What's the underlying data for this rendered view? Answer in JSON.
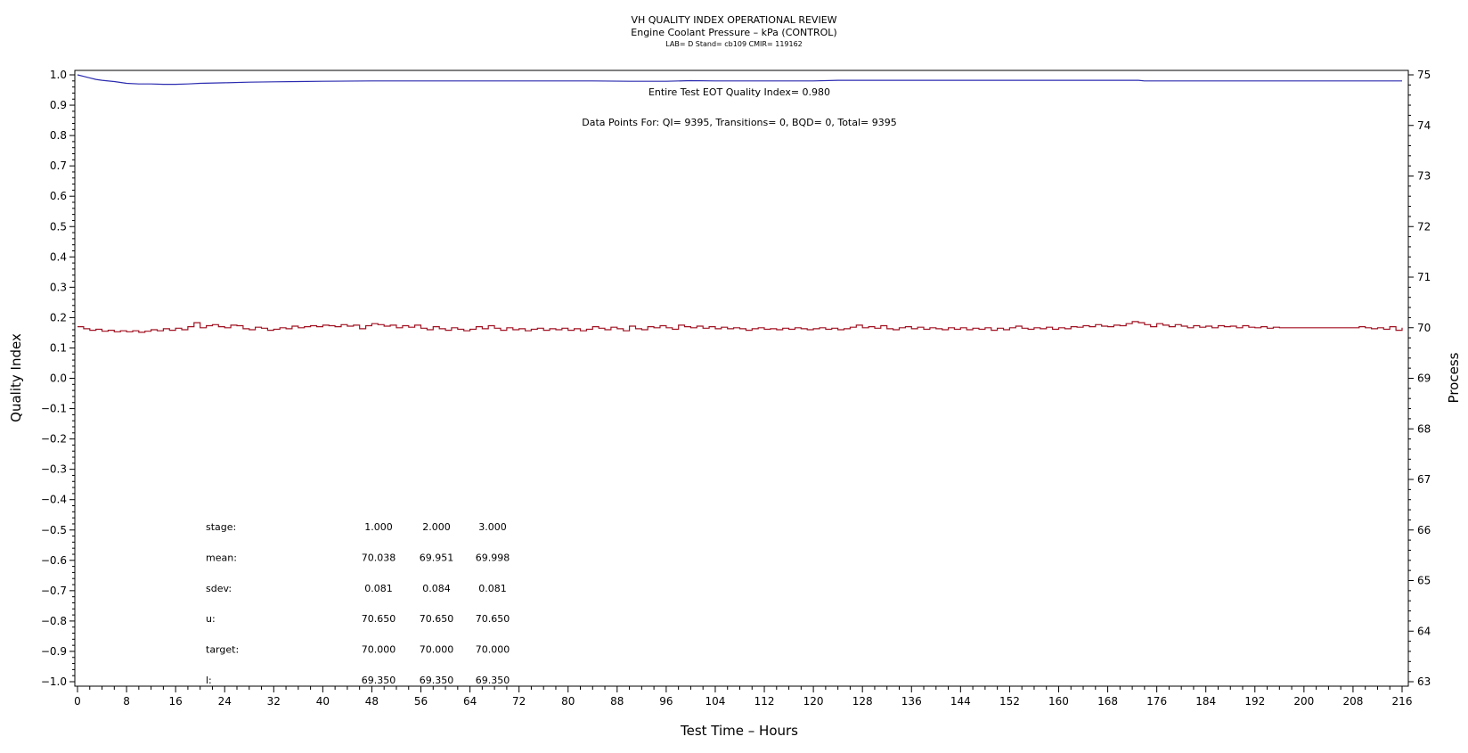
{
  "chart_data": {
    "type": "line",
    "title": "VH QUALITY INDEX OPERATIONAL REVIEW",
    "subtitle": "Engine Coolant Pressure – kPa (CONTROL)",
    "subtitle2": "LAB= D Stand= cb109 CMIR= 119162",
    "xlabel": "Test Time – Hours",
    "ylabel": "Quality Index",
    "y2label": "Process",
    "xlim": [
      0,
      216
    ],
    "ylim": [
      -1.0,
      1.0
    ],
    "y2lim": [
      63,
      75
    ],
    "x_ticks": [
      0,
      8,
      16,
      24,
      32,
      40,
      48,
      56,
      64,
      72,
      80,
      88,
      96,
      104,
      112,
      120,
      128,
      136,
      144,
      152,
      160,
      168,
      176,
      184,
      192,
      200,
      208,
      216
    ],
    "x_tick_labels": [
      "0",
      "8",
      "16",
      "24",
      "32",
      "40",
      "48",
      "56",
      "64",
      "72",
      "80",
      "88",
      "96",
      "104",
      "112",
      "120",
      "128",
      "136",
      "144",
      "152",
      "160",
      "168",
      "176",
      "184",
      "192",
      "200",
      "208",
      "216"
    ],
    "y_ticks": [
      1.0,
      0.9,
      0.8,
      0.7,
      0.6,
      0.5,
      0.4,
      0.3,
      0.2,
      0.1,
      0.0,
      -0.1,
      -0.2,
      -0.3,
      -0.4,
      -0.5,
      -0.6,
      -0.7,
      -0.8,
      -0.9,
      -1.0
    ],
    "y_tick_labels": [
      "1.0",
      "0.9",
      "0.8",
      "0.7",
      "0.6",
      "0.5",
      "0.4",
      "0.3",
      "0.2",
      "0.1",
      "0.0",
      "−0.1",
      "−0.2",
      "−0.3",
      "−0.4",
      "−0.5",
      "−0.6",
      "−0.7",
      "−0.8",
      "−0.9",
      "−1.0"
    ],
    "y2_ticks": [
      75,
      74,
      73,
      72,
      71,
      70,
      69,
      68,
      67,
      66,
      65,
      64,
      63
    ],
    "y2_tick_labels": [
      "75",
      "74",
      "73",
      "72",
      "71",
      "70",
      "69",
      "68",
      "67",
      "66",
      "65",
      "64",
      "63"
    ],
    "grid": false,
    "series": [
      {
        "axis": "left",
        "color": "#2b2bb0",
        "points": [
          [
            0,
            1.0
          ],
          [
            1,
            0.995
          ],
          [
            2,
            0.99
          ],
          [
            3,
            0.985
          ],
          [
            4,
            0.982
          ],
          [
            6,
            0.978
          ],
          [
            8,
            0.972
          ],
          [
            10,
            0.97
          ],
          [
            12,
            0.97
          ],
          [
            14,
            0.969
          ],
          [
            16,
            0.969
          ],
          [
            18,
            0.97
          ],
          [
            20,
            0.972
          ],
          [
            24,
            0.974
          ],
          [
            28,
            0.976
          ],
          [
            32,
            0.977
          ],
          [
            36,
            0.978
          ],
          [
            40,
            0.979
          ],
          [
            48,
            0.98
          ],
          [
            60,
            0.98
          ],
          [
            72,
            0.98
          ],
          [
            84,
            0.98
          ],
          [
            90,
            0.979
          ],
          [
            96,
            0.979
          ],
          [
            100,
            0.981
          ],
          [
            104,
            0.98
          ],
          [
            112,
            0.98
          ],
          [
            120,
            0.98
          ],
          [
            124,
            0.982
          ],
          [
            132,
            0.982
          ],
          [
            144,
            0.982
          ],
          [
            156,
            0.982
          ],
          [
            168,
            0.982
          ],
          [
            173,
            0.982
          ],
          [
            174,
            0.98
          ],
          [
            184,
            0.98
          ],
          [
            196,
            0.98
          ],
          [
            208,
            0.98
          ],
          [
            216,
            0.98
          ]
        ]
      },
      {
        "axis": "right",
        "color": "#a01020",
        "points": [
          [
            0,
            70.02
          ],
          [
            1,
            69.98
          ],
          [
            2,
            69.95
          ],
          [
            3,
            69.97
          ],
          [
            4,
            69.93
          ],
          [
            5,
            69.95
          ],
          [
            6,
            69.92
          ],
          [
            7,
            69.94
          ],
          [
            8,
            69.92
          ],
          [
            9,
            69.94
          ],
          [
            10,
            69.91
          ],
          [
            11,
            69.93
          ],
          [
            12,
            69.96
          ],
          [
            13,
            69.94
          ],
          [
            14,
            69.98
          ],
          [
            15,
            69.95
          ],
          [
            16,
            69.99
          ],
          [
            17,
            69.96
          ],
          [
            18,
            70.02
          ],
          [
            19,
            70.1
          ],
          [
            20,
            70.0
          ],
          [
            21,
            70.04
          ],
          [
            22,
            70.06
          ],
          [
            23,
            70.02
          ],
          [
            24,
            70.0
          ],
          [
            25,
            70.05
          ],
          [
            26,
            70.04
          ],
          [
            27,
            69.98
          ],
          [
            28,
            69.96
          ],
          [
            29,
            70.01
          ],
          [
            30,
            69.99
          ],
          [
            31,
            69.95
          ],
          [
            32,
            69.97
          ],
          [
            33,
            70.0
          ],
          [
            34,
            69.98
          ],
          [
            35,
            70.03
          ],
          [
            36,
            70.0
          ],
          [
            37,
            70.02
          ],
          [
            38,
            70.04
          ],
          [
            39,
            70.02
          ],
          [
            40,
            70.05
          ],
          [
            41,
            70.04
          ],
          [
            42,
            70.02
          ],
          [
            43,
            70.06
          ],
          [
            44,
            70.03
          ],
          [
            45,
            70.05
          ],
          [
            46,
            69.98
          ],
          [
            47,
            70.04
          ],
          [
            48,
            70.08
          ],
          [
            49,
            70.06
          ],
          [
            50,
            70.03
          ],
          [
            51,
            70.05
          ],
          [
            52,
            70.0
          ],
          [
            53,
            70.04
          ],
          [
            54,
            70.01
          ],
          [
            55,
            70.05
          ],
          [
            56,
            69.99
          ],
          [
            57,
            69.96
          ],
          [
            58,
            70.02
          ],
          [
            59,
            69.98
          ],
          [
            60,
            69.95
          ],
          [
            61,
            70.0
          ],
          [
            62,
            69.97
          ],
          [
            63,
            69.94
          ],
          [
            64,
            69.97
          ],
          [
            65,
            70.02
          ],
          [
            66,
            69.98
          ],
          [
            67,
            70.04
          ],
          [
            68,
            69.99
          ],
          [
            69,
            69.95
          ],
          [
            70,
            70.0
          ],
          [
            71,
            69.96
          ],
          [
            72,
            69.98
          ],
          [
            73,
            69.94
          ],
          [
            74,
            69.97
          ],
          [
            75,
            69.99
          ],
          [
            76,
            69.95
          ],
          [
            77,
            69.98
          ],
          [
            78,
            69.96
          ],
          [
            79,
            69.99
          ],
          [
            80,
            69.95
          ],
          [
            81,
            69.98
          ],
          [
            82,
            69.94
          ],
          [
            83,
            69.97
          ],
          [
            84,
            70.02
          ],
          [
            85,
            69.99
          ],
          [
            86,
            69.96
          ],
          [
            87,
            70.01
          ],
          [
            88,
            69.98
          ],
          [
            89,
            69.94
          ],
          [
            90,
            70.03
          ],
          [
            91,
            69.98
          ],
          [
            92,
            69.96
          ],
          [
            93,
            70.02
          ],
          [
            94,
            70.0
          ],
          [
            95,
            70.04
          ],
          [
            96,
            70.0
          ],
          [
            97,
            69.97
          ],
          [
            98,
            70.05
          ],
          [
            99,
            70.02
          ],
          [
            100,
            70.0
          ],
          [
            101,
            70.03
          ],
          [
            102,
            69.99
          ],
          [
            103,
            70.02
          ],
          [
            104,
            69.98
          ],
          [
            105,
            70.01
          ],
          [
            106,
            69.98
          ],
          [
            107,
            70.0
          ],
          [
            108,
            69.98
          ],
          [
            109,
            69.95
          ],
          [
            110,
            69.98
          ],
          [
            111,
            70.0
          ],
          [
            112,
            69.97
          ],
          [
            113,
            69.98
          ],
          [
            114,
            69.96
          ],
          [
            115,
            69.99
          ],
          [
            116,
            69.97
          ],
          [
            117,
            70.0
          ],
          [
            118,
            69.98
          ],
          [
            119,
            69.96
          ],
          [
            120,
            69.98
          ],
          [
            121,
            70.0
          ],
          [
            122,
            69.97
          ],
          [
            123,
            69.99
          ],
          [
            124,
            69.96
          ],
          [
            125,
            69.98
          ],
          [
            126,
            70.01
          ],
          [
            127,
            70.05
          ],
          [
            128,
            70.0
          ],
          [
            129,
            70.02
          ],
          [
            130,
            69.99
          ],
          [
            131,
            70.04
          ],
          [
            132,
            69.98
          ],
          [
            133,
            69.96
          ],
          [
            134,
            70.0
          ],
          [
            135,
            70.02
          ],
          [
            136,
            69.98
          ],
          [
            137,
            70.01
          ],
          [
            138,
            69.97
          ],
          [
            139,
            70.0
          ],
          [
            140,
            69.98
          ],
          [
            141,
            69.96
          ],
          [
            142,
            70.0
          ],
          [
            143,
            69.97
          ],
          [
            144,
            70.0
          ],
          [
            145,
            69.96
          ],
          [
            146,
            69.99
          ],
          [
            147,
            69.97
          ],
          [
            148,
            70.0
          ],
          [
            149,
            69.95
          ],
          [
            150,
            69.99
          ],
          [
            151,
            69.96
          ],
          [
            152,
            70.0
          ],
          [
            153,
            70.03
          ],
          [
            154,
            69.99
          ],
          [
            155,
            69.97
          ],
          [
            156,
            70.0
          ],
          [
            157,
            69.98
          ],
          [
            158,
            70.01
          ],
          [
            159,
            69.97
          ],
          [
            160,
            70.0
          ],
          [
            161,
            69.98
          ],
          [
            162,
            70.02
          ],
          [
            163,
            70.01
          ],
          [
            164,
            70.04
          ],
          [
            165,
            70.02
          ],
          [
            166,
            70.06
          ],
          [
            167,
            70.03
          ],
          [
            168,
            70.02
          ],
          [
            169,
            70.05
          ],
          [
            170,
            70.04
          ],
          [
            171,
            70.08
          ],
          [
            172,
            70.12
          ],
          [
            173,
            70.1
          ],
          [
            174,
            70.06
          ],
          [
            175,
            70.02
          ],
          [
            176,
            70.08
          ],
          [
            177,
            70.05
          ],
          [
            178,
            70.02
          ],
          [
            179,
            70.06
          ],
          [
            180,
            70.03
          ],
          [
            181,
            70.0
          ],
          [
            182,
            70.04
          ],
          [
            183,
            70.01
          ],
          [
            184,
            70.03
          ],
          [
            185,
            70.0
          ],
          [
            186,
            70.04
          ],
          [
            187,
            70.02
          ],
          [
            188,
            70.03
          ],
          [
            189,
            70.0
          ],
          [
            190,
            70.04
          ],
          [
            191,
            70.01
          ],
          [
            192,
            70.0
          ],
          [
            193,
            70.02
          ],
          [
            194,
            69.99
          ],
          [
            195,
            70.01
          ],
          [
            196,
            70.0
          ],
          [
            197,
            70.0
          ],
          [
            198,
            70.0
          ],
          [
            199,
            70.0
          ],
          [
            200,
            70.0
          ],
          [
            201,
            70.0
          ],
          [
            202,
            70.0
          ],
          [
            203,
            70.0
          ],
          [
            204,
            70.0
          ],
          [
            205,
            70.0
          ],
          [
            206,
            70.0
          ],
          [
            207,
            70.0
          ],
          [
            208,
            70.0
          ],
          [
            209,
            70.02
          ],
          [
            210,
            70.0
          ],
          [
            211,
            69.98
          ],
          [
            212,
            70.0
          ],
          [
            213,
            69.97
          ],
          [
            214,
            70.02
          ],
          [
            215,
            69.95
          ],
          [
            216,
            70.0
          ]
        ]
      }
    ],
    "annotations": {
      "eot": "Entire Test EOT Quality Index=   0.980",
      "datapoints": "Data Points For: QI=  9395, Transitions=     0, BQD=     0, Total=  9395"
    },
    "stats_table": {
      "labels": [
        "stage:",
        "mean:",
        "sdev:",
        "u:",
        "target:",
        "l:"
      ],
      "columns": [
        [
          "1.000",
          "70.038",
          "0.081",
          "70.650",
          "70.000",
          "69.350"
        ],
        [
          "2.000",
          "69.951",
          "0.084",
          "70.650",
          "70.000",
          "69.350"
        ],
        [
          "3.000",
          "69.998",
          "0.081",
          "70.650",
          "70.000",
          "69.350"
        ]
      ]
    }
  }
}
